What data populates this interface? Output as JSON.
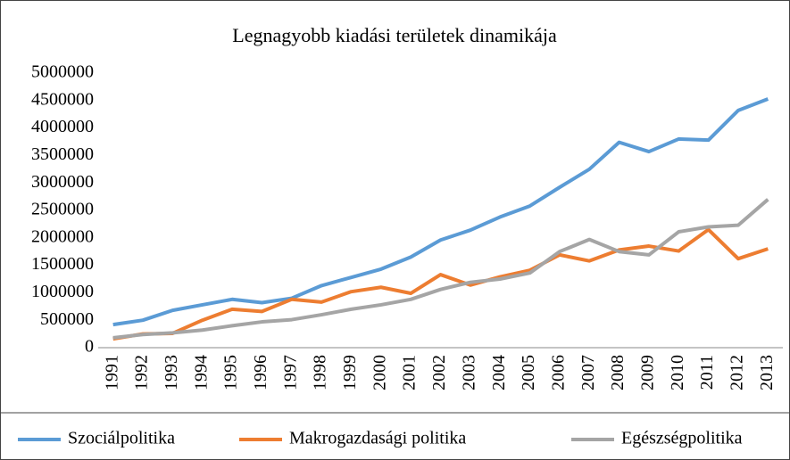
{
  "chart_data": {
    "type": "line",
    "title": "Legnagyobb kiadási területek dinamikája",
    "categories": [
      "1991",
      "1992",
      "1993",
      "1994",
      "1995",
      "1996",
      "1997",
      "1998",
      "1999",
      "2000",
      "2001",
      "2002",
      "2003",
      "2004",
      "2005",
      "2006",
      "2007",
      "2008",
      "2009",
      "2010",
      "2011",
      "2012",
      "2013"
    ],
    "series": [
      {
        "name": "Szociálpolitika",
        "color": "#5b9bd5",
        "values": [
          420000,
          500000,
          680000,
          780000,
          880000,
          820000,
          900000,
          1130000,
          1280000,
          1430000,
          1650000,
          1960000,
          2140000,
          2380000,
          2580000,
          2920000,
          3250000,
          3740000,
          3570000,
          3800000,
          3780000,
          4320000,
          4530000
        ]
      },
      {
        "name": "Makrogazdasági politika",
        "color": "#ed7d31",
        "values": [
          160000,
          250000,
          260000,
          500000,
          700000,
          660000,
          880000,
          830000,
          1020000,
          1100000,
          990000,
          1330000,
          1140000,
          1290000,
          1410000,
          1690000,
          1580000,
          1780000,
          1850000,
          1760000,
          2150000,
          1620000,
          1800000
        ]
      },
      {
        "name": "Egészségpolitika",
        "color": "#a5a5a5",
        "values": [
          180000,
          240000,
          270000,
          320000,
          400000,
          470000,
          510000,
          600000,
          700000,
          780000,
          880000,
          1060000,
          1190000,
          1250000,
          1360000,
          1750000,
          1970000,
          1750000,
          1690000,
          2110000,
          2200000,
          2230000,
          2700000
        ]
      }
    ],
    "ylim": [
      0,
      5000000
    ],
    "yticks": [
      0,
      500000,
      1000000,
      1500000,
      2000000,
      2500000,
      3000000,
      3500000,
      4000000,
      4500000,
      5000000
    ],
    "grid": false,
    "legend": "bottom"
  }
}
